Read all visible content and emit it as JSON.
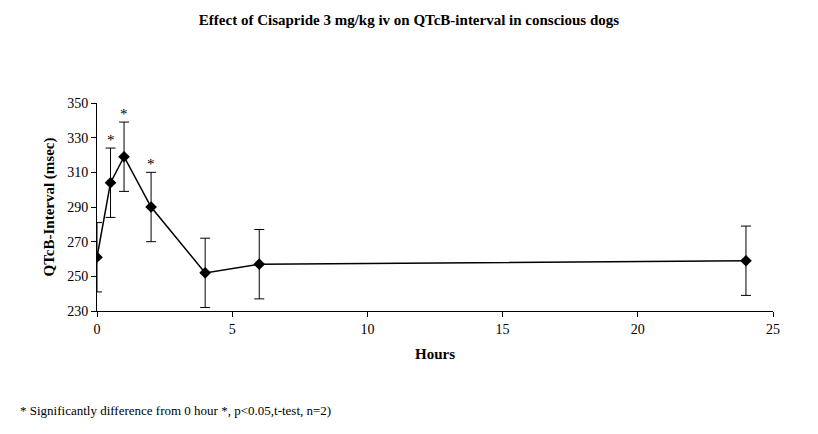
{
  "chart_data": {
    "type": "line",
    "title": "Effect of Cisapride 3 mg/kg iv on QTcB-interval in conscious dogs",
    "x_label": "Hours",
    "y_label": "QTcB-Interval (msec)",
    "x": [
      0,
      0.5,
      1,
      2,
      4,
      6,
      24
    ],
    "values": [
      261,
      304,
      319,
      290,
      252,
      257,
      259
    ],
    "errors": [
      20,
      20,
      20,
      20,
      20,
      20,
      20
    ],
    "color": "#000000",
    "marker": "diamond",
    "line_style": "solid",
    "xlim": [
      0,
      25
    ],
    "xticks": [
      0,
      5,
      10,
      15,
      20,
      25
    ],
    "ylim": [
      230,
      350
    ],
    "yticks": [
      230,
      250,
      270,
      290,
      310,
      330,
      350
    ],
    "grid": false,
    "annotations": [
      {
        "x": 0.5,
        "text": "*"
      },
      {
        "x": 1,
        "text": "*"
      },
      {
        "x": 2,
        "text": "*"
      }
    ],
    "note": "* Significantly difference from 0 hour *, p<0.05,t-test, n=2)"
  }
}
